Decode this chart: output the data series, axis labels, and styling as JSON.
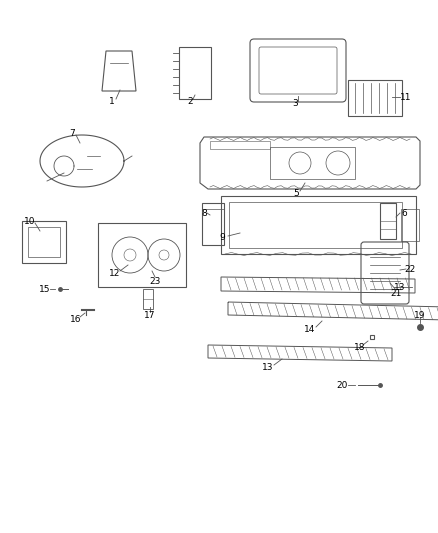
{
  "background_color": "#ffffff",
  "figure_width": 4.38,
  "figure_height": 5.33,
  "line_color": "#555555",
  "label_color": "#000000",
  "label_fontsize": 6.5
}
